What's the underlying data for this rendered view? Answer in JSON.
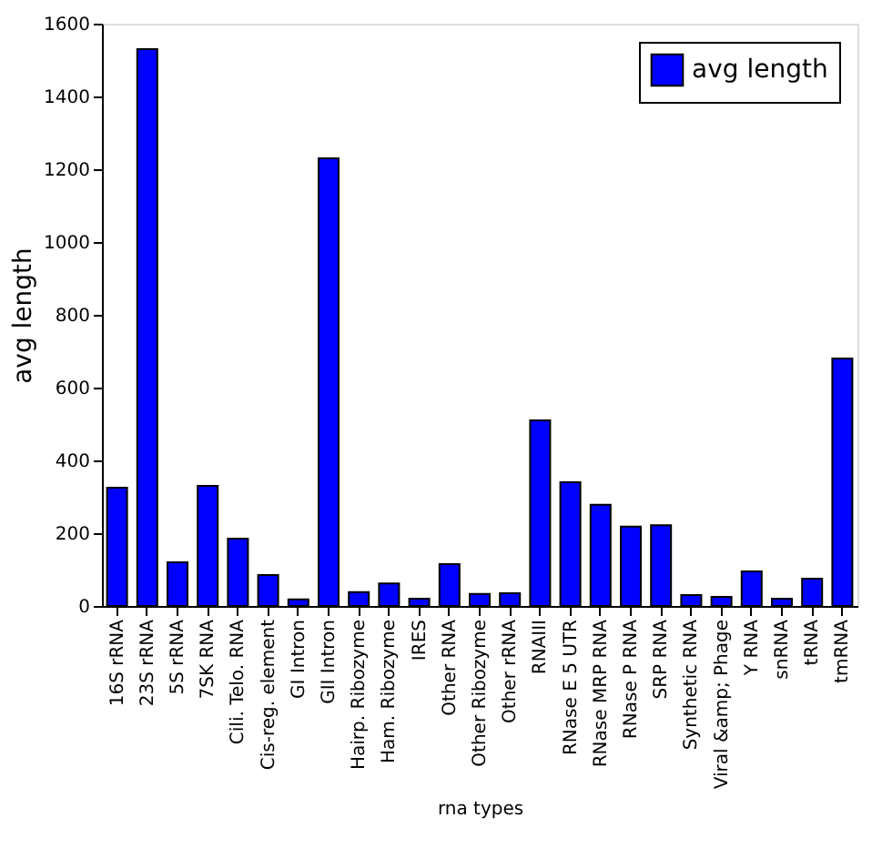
{
  "chart_data": {
    "type": "bar",
    "xlabel": "rna types",
    "ylabel": "avg length",
    "categories": [
      "16S rRNA",
      "23S rRNA",
      "5S rRNA",
      "7SK RNA",
      "Cili. Telo. RNA",
      "Cis-reg. element",
      "GI Intron",
      "GII Intron",
      "Hairp. Ribozyme",
      "Ham. Ribozyme",
      "IRES",
      "Other RNA",
      "Other Ribozyme",
      "Other rRNA",
      "RNAIII",
      "RNase E 5 UTR",
      "RNase MRP RNA",
      "RNase P RNA",
      "SRP RNA",
      "Synthetic RNA",
      "Viral &amp; Phage",
      "Y RNA",
      "snRNA",
      "tRNA",
      "tmRNA"
    ],
    "series": [
      {
        "name": "avg length",
        "color": "#0000ff",
        "values": [
          325,
          1530,
          120,
          330,
          185,
          85,
          18,
          1230,
          38,
          62,
          20,
          115,
          33,
          35,
          510,
          340,
          278,
          218,
          222,
          30,
          25,
          95,
          20,
          75,
          680
        ]
      }
    ],
    "ylim": [
      0,
      1600
    ],
    "yticks": [
      0,
      200,
      400,
      600,
      800,
      1000,
      1200,
      1400,
      1600
    ],
    "grid": false,
    "legend": "top right"
  }
}
